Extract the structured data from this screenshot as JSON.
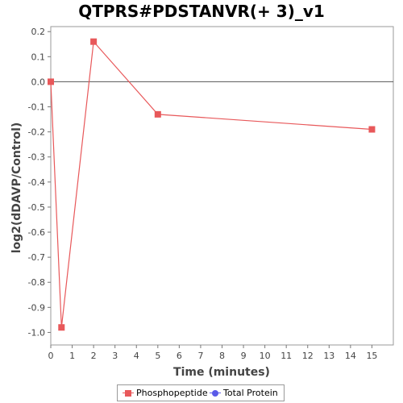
{
  "chart_data": {
    "type": "line",
    "title": "QTPRS#PDSTANVR(+ 3)_v1",
    "xlabel": "Time (minutes)",
    "ylabel": "log2(dDAVP/Control)",
    "xlim": [
      0,
      16
    ],
    "ylim": [
      -1.05,
      0.22
    ],
    "x_ticks": [
      0,
      1,
      2,
      3,
      4,
      5,
      6,
      7,
      8,
      9,
      10,
      11,
      12,
      13,
      14,
      15
    ],
    "y_ticks": [
      0.2,
      0.1,
      0.0,
      -0.1,
      -0.2,
      -0.3,
      -0.4,
      -0.5,
      -0.6,
      -0.7,
      -0.8,
      -0.9,
      -1.0
    ],
    "x_tick_labels": [
      "0",
      "1",
      "2",
      "3",
      "4",
      "5",
      "6",
      "7",
      "8",
      "9",
      "10",
      "11",
      "12",
      "13",
      "14",
      "15"
    ],
    "y_tick_labels": [
      "0.2",
      "0.1",
      "0.0",
      "-0.1",
      "-0.2",
      "-0.3",
      "-0.4",
      "-0.5",
      "-0.6",
      "-0.7",
      "-0.8",
      "-0.9",
      "-1.0"
    ],
    "zero_line": 0,
    "grid": false,
    "legend_position": "bottom",
    "series": [
      {
        "name": "Phosphopeptide",
        "color": "#e8585a",
        "marker": "square",
        "x": [
          0,
          0.5,
          2,
          5,
          15
        ],
        "y": [
          0.0,
          -0.98,
          0.16,
          -0.13,
          -0.19
        ]
      },
      {
        "name": "Total Protein",
        "color": "#5a5ae8",
        "marker": "circle",
        "x": [],
        "y": []
      }
    ]
  }
}
